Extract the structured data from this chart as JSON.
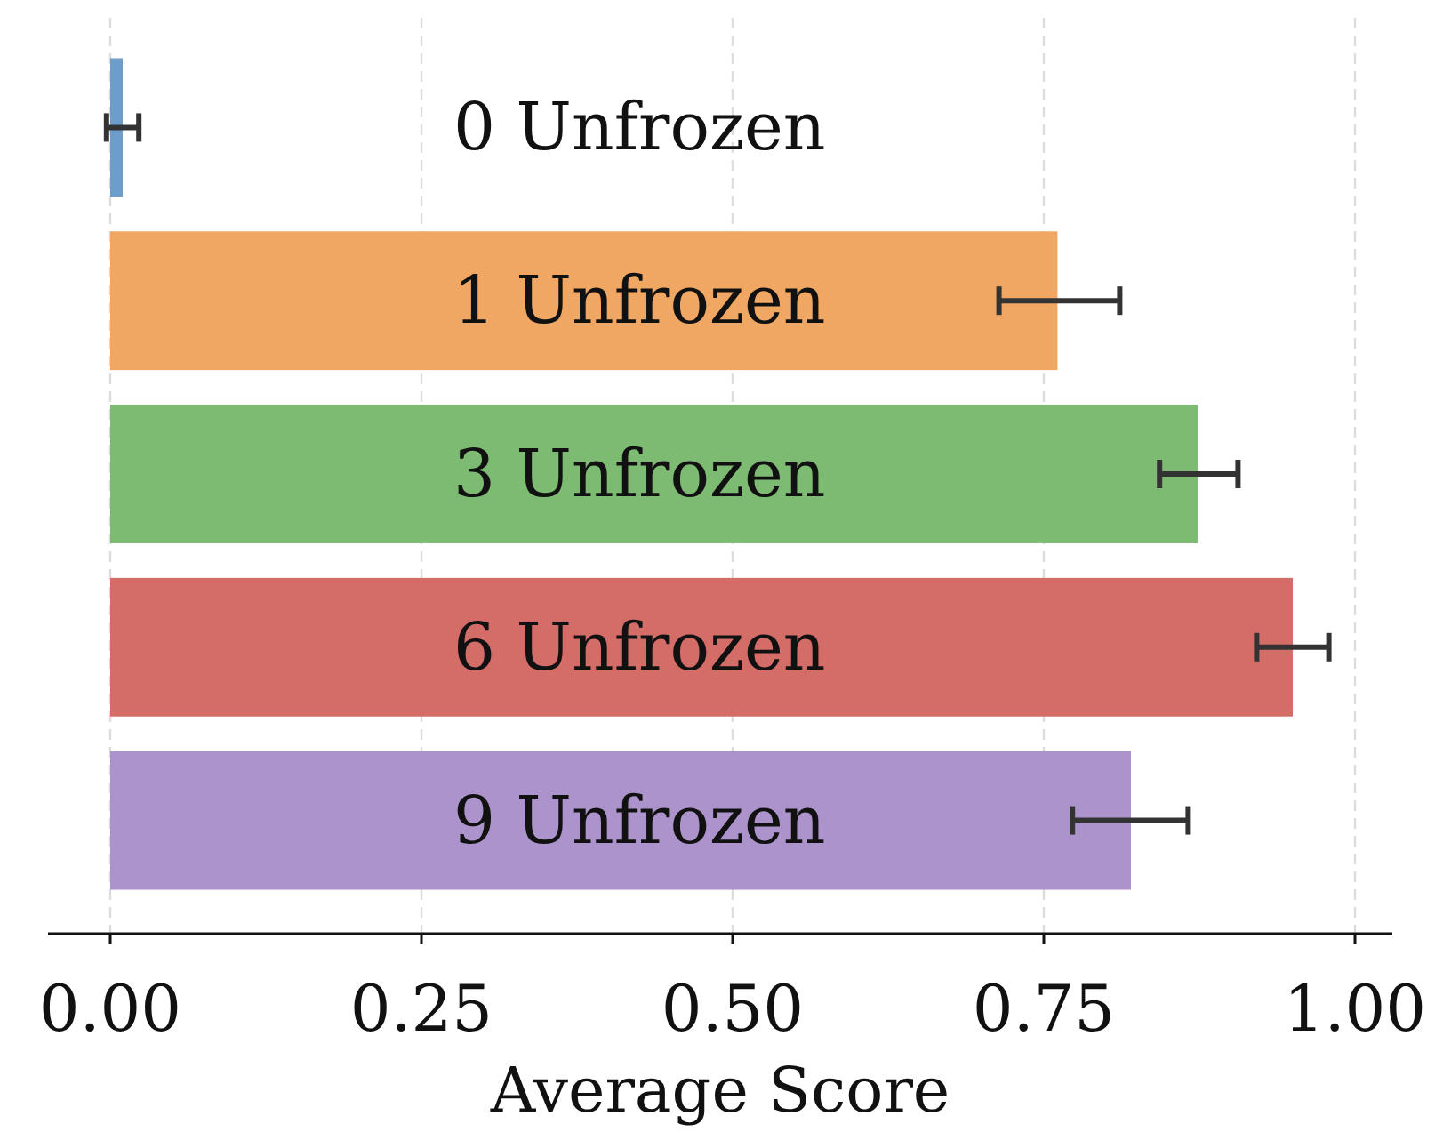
{
  "chart_data": {
    "type": "bar",
    "orientation": "horizontal",
    "xlabel": "Average Score",
    "categories": [
      "0 Unfrozen",
      "1 Unfrozen",
      "3 Unfrozen",
      "6 Unfrozen",
      "9 Unfrozen"
    ],
    "values": [
      0.01,
      0.761,
      0.874,
      0.95,
      0.82
    ],
    "errors": [
      0.013,
      [
        0.714,
        0.811
      ],
      [
        0.843,
        0.906
      ],
      [
        0.921,
        0.979
      ],
      [
        0.773,
        0.866
      ]
    ],
    "colors": [
      "#6c9dcb",
      "#f0a763",
      "#7dbb72",
      "#d46c68",
      "#ad93cb"
    ],
    "xlim": [
      -0.05,
      1.03
    ],
    "xticks": [
      {
        "value": 0,
        "label": "0.00"
      },
      {
        "value": 0.25,
        "label": "0.25"
      },
      {
        "value": 0.5,
        "label": "0.50"
      },
      {
        "value": 0.75,
        "label": "0.75"
      },
      {
        "value": 1,
        "label": "1.00"
      }
    ],
    "grid": "x"
  }
}
